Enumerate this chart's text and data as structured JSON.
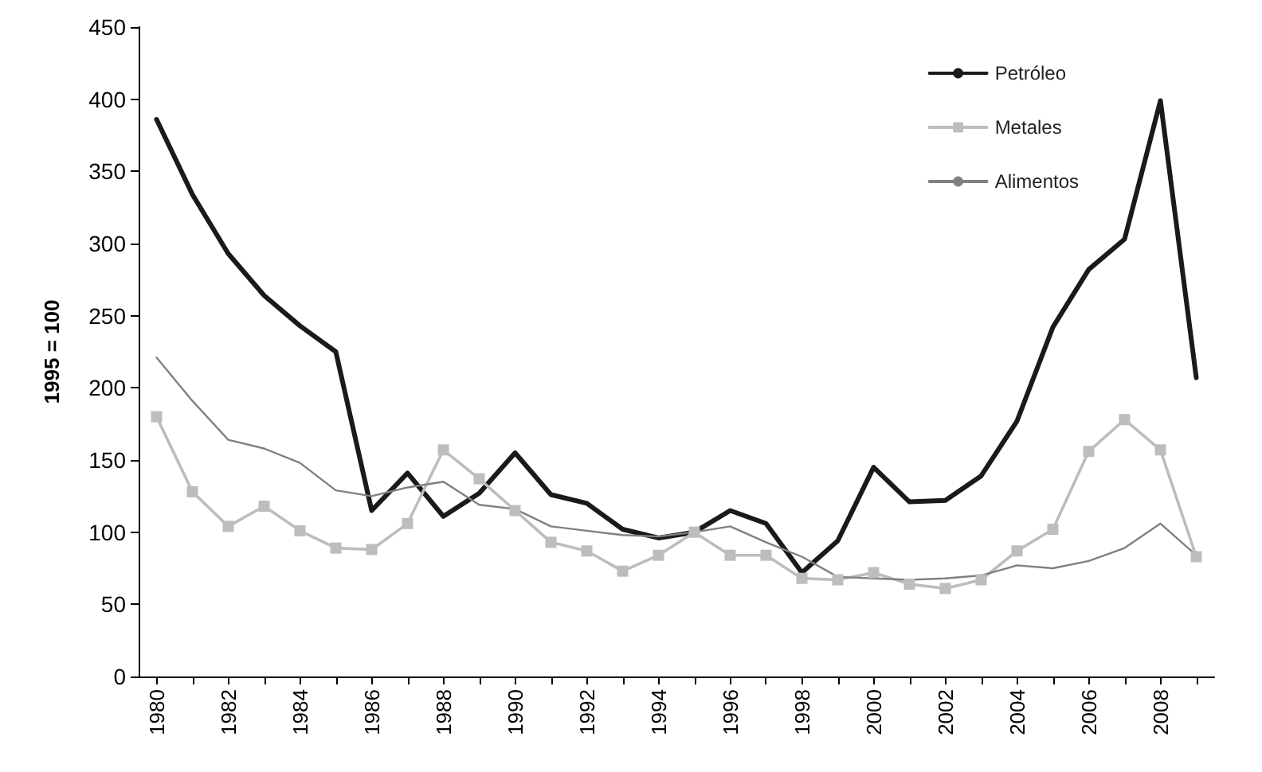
{
  "chart_data": {
    "type": "line",
    "ylabel": "1995 = 100",
    "categories": [
      "1980",
      null,
      "1982",
      null,
      "1984",
      null,
      "1986",
      null,
      "1988",
      null,
      "1990",
      null,
      "1992",
      null,
      "1994",
      null,
      "1996",
      null,
      "1998",
      null,
      "2000",
      null,
      "2002",
      null,
      "2004",
      null,
      "2006",
      null,
      "2008",
      null
    ],
    "series": [
      {
        "name": "Petróleo",
        "color": "#1a1a1a",
        "marker": "none",
        "values": [
          386,
          334,
          293,
          264,
          243,
          225,
          115,
          141,
          111,
          127,
          155,
          126,
          120,
          102,
          96,
          100,
          115,
          106,
          72,
          94,
          145,
          121,
          122,
          139,
          177,
          242,
          282,
          303,
          399,
          207
        ]
      },
      {
        "name": "Metales",
        "color": "#bdbdbd",
        "marker": "square",
        "values": [
          180,
          128,
          104,
          118,
          101,
          89,
          88,
          106,
          157,
          137,
          115,
          93,
          87,
          73,
          84,
          100,
          84,
          84,
          68,
          67,
          72,
          64,
          61,
          67,
          87,
          102,
          156,
          178,
          157,
          83
        ]
      },
      {
        "name": "Alimentos",
        "color": "#808080",
        "marker": "none",
        "values": [
          221,
          191,
          164,
          158,
          148,
          129,
          125,
          131,
          135,
          119,
          116,
          104,
          101,
          98,
          97,
          100,
          104,
          93,
          83,
          69,
          68,
          67,
          68,
          70,
          77,
          75,
          80,
          89,
          106,
          84
        ]
      }
    ],
    "ylim": [
      0,
      450
    ],
    "yticks": [
      0,
      50,
      100,
      150,
      200,
      250,
      300,
      350,
      400,
      450
    ],
    "grid": false,
    "legend": "top right",
    "line_style": "solid"
  }
}
